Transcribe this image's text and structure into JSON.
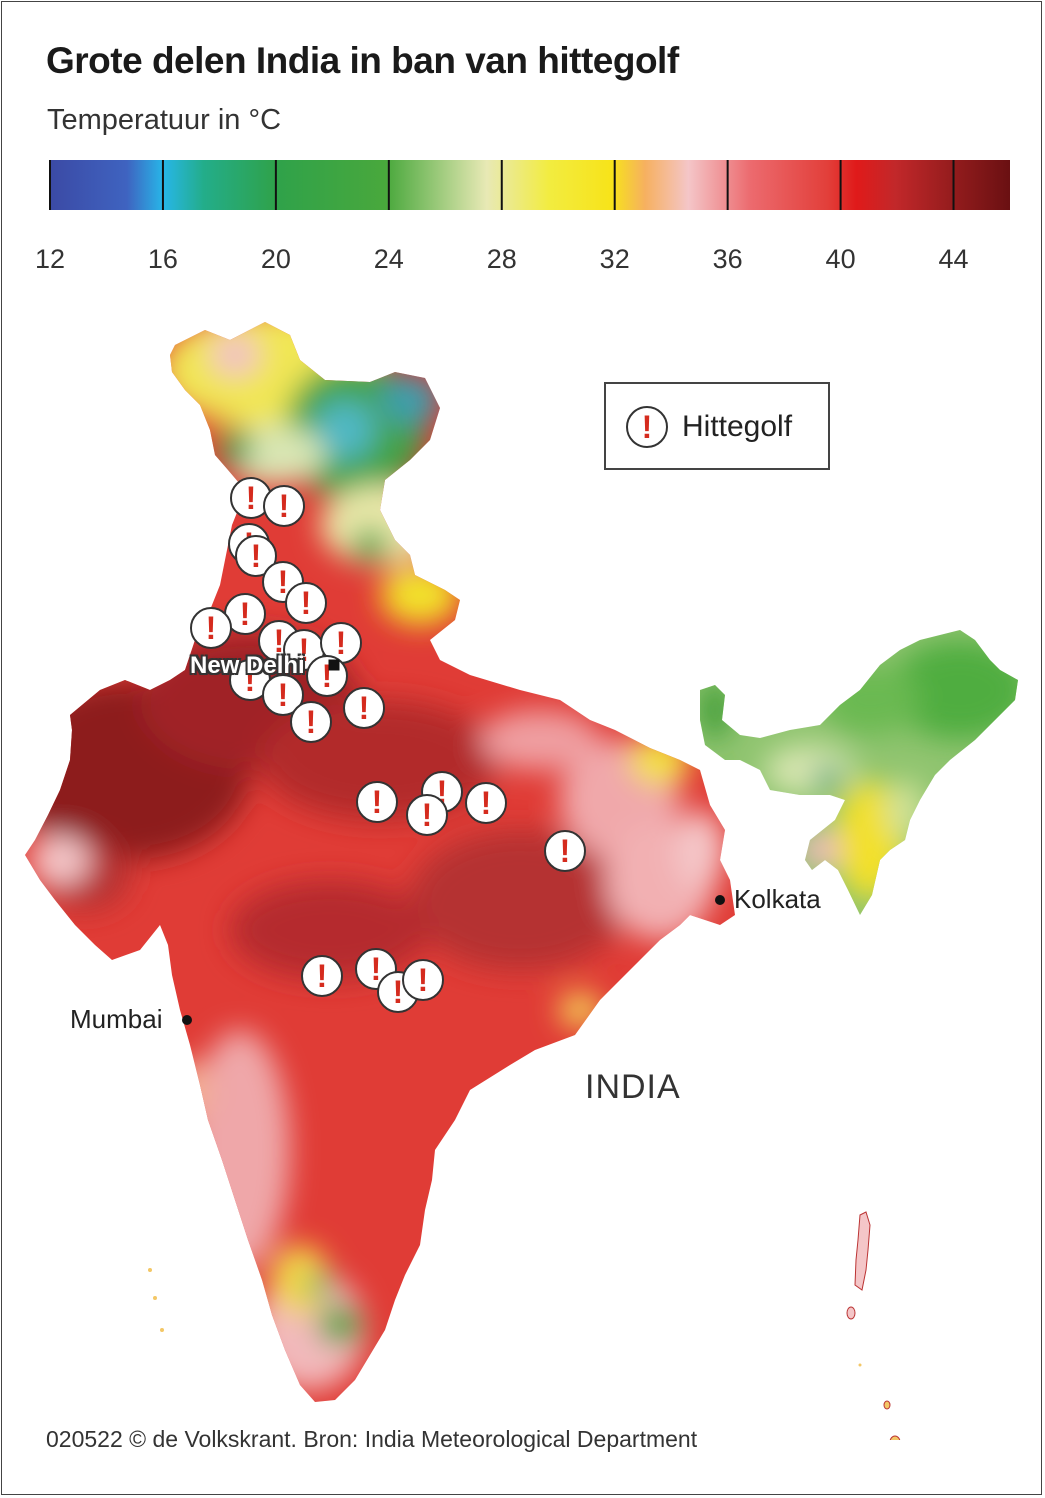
{
  "title": "Grote delen India in ban van hittegolf",
  "subtitle": "Temperatuur in °C",
  "color_scale": {
    "min": 12,
    "max": 46,
    "tick_labels": [
      "12",
      "16",
      "20",
      "24",
      "28",
      "32",
      "36",
      "40",
      "44"
    ],
    "tick_values": [
      12,
      16,
      20,
      24,
      28,
      32,
      36,
      40,
      44
    ]
  },
  "legend": {
    "icon": "exclamation-icon",
    "label": "Hittegolf"
  },
  "cities": {
    "capital": "New Delhi",
    "kolkata": "Kolkata",
    "mumbai": "Mumbai"
  },
  "country_label": "INDIA",
  "credit": "020522 © de Volkskrant. Bron: India Meteorological Department",
  "warning_count": 27,
  "colors": {
    "very_hot": "#8d1a1b",
    "hot": "#e23f3a",
    "warm": "#f4c6c8",
    "mild": "#f7e319",
    "cool": "#49a83c",
    "cold": "#27b6e8",
    "warning_mark": "#d52b1e"
  }
}
